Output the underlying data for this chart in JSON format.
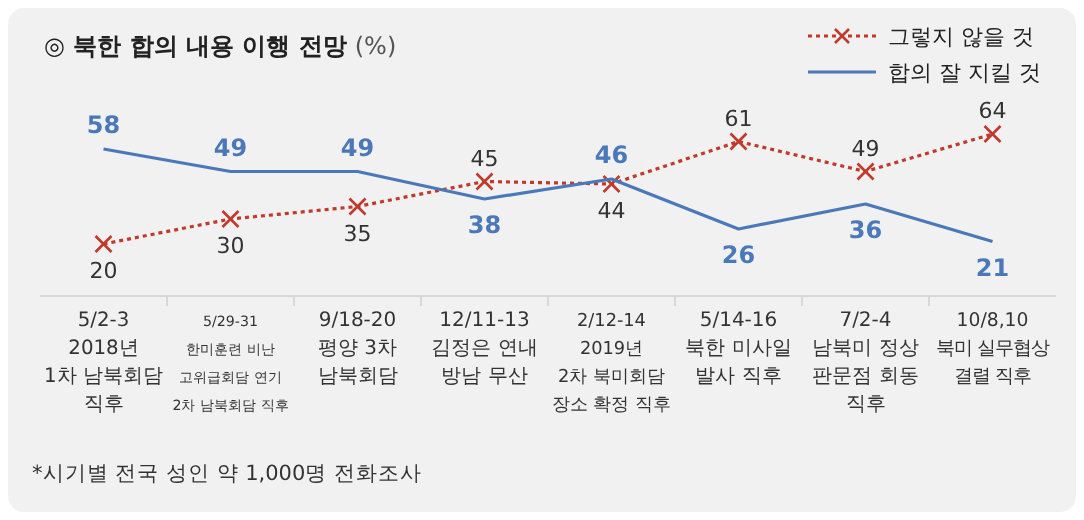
{
  "chart_data": {
    "type": "line",
    "title": "◎  북한 합의 내용 이행 전망",
    "subtitle": "(%)",
    "categories": [
      "5/2-3\n2018년\n1차 남북회담\n직후",
      "5/29-31\n한미훈련 비난\n고위급회담 연기\n2차 남북회담 직후",
      "9/18-20\n평양 3차\n남북회담",
      "12/11-13\n김정은 연내\n방남 무산",
      "2/12-14\n2019년\n2차 북미회담\n장소 확정 직후",
      "5/14-16\n북한 미사일\n발사 직후",
      "7/2-4\n남북미 정상\n판문점 회동\n직후",
      "10/8,10\n북미 실무협상\n결렬 직후"
    ],
    "series": [
      {
        "name": "그렇지 않을 것",
        "color": "#c0392b",
        "line_style": "dotted",
        "marker": "cross",
        "values": [
          20,
          30,
          35,
          45,
          44,
          61,
          49,
          64
        ]
      },
      {
        "name": "합의 잘 지킬 것",
        "color": "#4a78b8",
        "line_style": "solid",
        "marker": "none",
        "values": [
          58,
          49,
          49,
          38,
          46,
          26,
          36,
          21
        ]
      }
    ],
    "data_labels": true,
    "legend": "top right",
    "annotations": [
      "*시기별 전국 성인 약 1,000명 전화조사"
    ]
  }
}
